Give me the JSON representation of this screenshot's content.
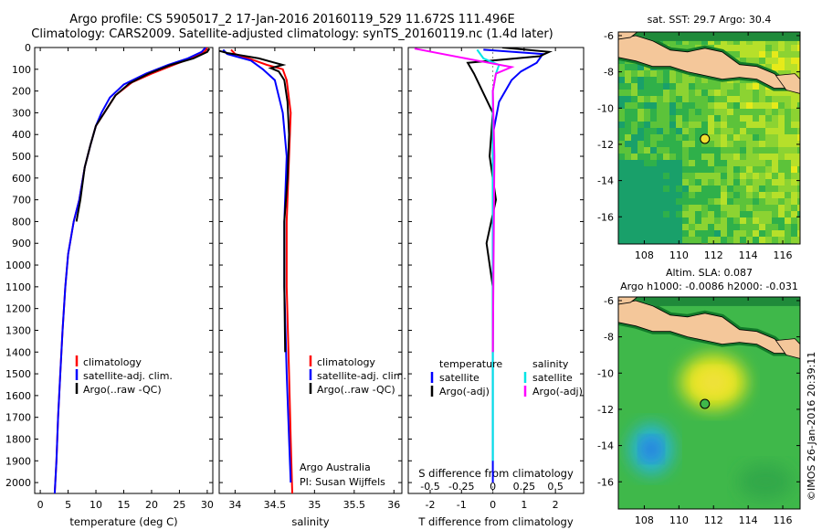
{
  "title_line1": "Argo profile: CS 5905017_2 17-Jan-2016 20160119_529 11.672S 111.496E",
  "title_line2": "Climatology: CARS2009. Satellite-adjusted climatology: synTS_20160119.nc (1.4d later)",
  "credit": "©IMOS 26-Jan-2016 20:39:11",
  "colors": {
    "climatology": "#ff0000",
    "satellite": "#0000ff",
    "argo": "#000000",
    "sal_sat": "#00e5e5",
    "sal_argo": "#ff00ff",
    "land": "#f4c79a"
  },
  "chart_data": [
    {
      "type": "line",
      "xlabel": "temperature (deg C)",
      "ylabel": "",
      "xlim": [
        -1,
        31
      ],
      "ylim": [
        2050,
        0
      ],
      "xticks": [
        0,
        5,
        10,
        15,
        20,
        25,
        30
      ],
      "yticks": [
        0,
        100,
        200,
        300,
        400,
        500,
        600,
        700,
        800,
        900,
        1000,
        1100,
        1200,
        1300,
        1400,
        1500,
        1600,
        1700,
        1800,
        1900,
        2000
      ],
      "legend": [
        "climatology",
        "satellite-adj. clim.",
        "Argo(..raw -QC)"
      ],
      "series": [
        {
          "name": "climatology",
          "color": "#ff0000",
          "x": [
            30,
            29.5,
            27,
            24,
            20,
            16.5,
            13.5,
            11.5,
            10,
            9,
            8,
            7,
            6,
            5,
            4.5,
            4,
            3.6,
            3.2,
            2.9,
            2.6
          ],
          "y": [
            0,
            20,
            50,
            80,
            120,
            160,
            220,
            300,
            360,
            450,
            550,
            700,
            800,
            950,
            1100,
            1300,
            1500,
            1700,
            1900,
            2050
          ]
        },
        {
          "name": "satellite-adj. clim.",
          "color": "#0000ff",
          "x": [
            29.7,
            29,
            26.5,
            23,
            19,
            15,
            12.5,
            11,
            10,
            9,
            8,
            7,
            6,
            5,
            4.5,
            4,
            3.6,
            3.2,
            2.9,
            2.6
          ],
          "y": [
            0,
            20,
            50,
            80,
            120,
            170,
            230,
            300,
            360,
            450,
            550,
            700,
            800,
            950,
            1100,
            1300,
            1500,
            1700,
            1900,
            2050
          ]
        },
        {
          "name": "Argo(..raw -QC)",
          "color": "#000000",
          "x": [
            30.4,
            30,
            27.5,
            23.5,
            19.5,
            16,
            13.5,
            11.5,
            10,
            9,
            8,
            7.2,
            6.5
          ],
          "y": [
            5,
            20,
            50,
            80,
            120,
            165,
            220,
            300,
            360,
            450,
            550,
            700,
            800
          ]
        }
      ]
    },
    {
      "type": "line",
      "xlabel": "salinity",
      "ylabel": "",
      "xlim": [
        33.8,
        36.1
      ],
      "ylim": [
        2050,
        0
      ],
      "xticks": [
        34,
        34.5,
        35,
        35.5,
        36
      ],
      "legend": [
        "climatology",
        "satellite-adj. clim.",
        "Argo(..raw -QC)"
      ],
      "annotation": [
        "Argo Australia",
        "PI: Susan Wijffels"
      ],
      "series": [
        {
          "name": "climatology",
          "color": "#ff0000",
          "x": [
            33.95,
            34.0,
            34.25,
            34.4,
            34.6,
            34.65,
            34.7,
            34.68,
            34.65,
            34.65,
            34.68,
            34.7,
            34.72
          ],
          "y": [
            10,
            30,
            60,
            80,
            100,
            150,
            300,
            500,
            800,
            1100,
            1500,
            1800,
            2050
          ]
        },
        {
          "name": "satellite-adj. clim.",
          "color": "#0000ff",
          "x": [
            33.85,
            33.9,
            34.2,
            34.35,
            34.5,
            34.6,
            34.65,
            34.62,
            34.62,
            34.65,
            34.68,
            34.7
          ],
          "y": [
            10,
            30,
            60,
            100,
            150,
            300,
            500,
            800,
            1100,
            1500,
            1800,
            2000
          ]
        },
        {
          "name": "Argo(..raw -QC)",
          "color": "#000000",
          "x": [
            33.7,
            33.9,
            34.3,
            34.5,
            34.6,
            34.45,
            34.55,
            34.62,
            34.66,
            34.68,
            34.66,
            34.62,
            34.62,
            34.63
          ],
          "y": [
            5,
            25,
            50,
            70,
            80,
            95,
            110,
            150,
            250,
            400,
            600,
            800,
            1100,
            1400
          ]
        }
      ]
    },
    {
      "type": "line",
      "xlabel": "T difference from climatology",
      "ylabel": "",
      "xlim": [
        -2.7,
        2.9
      ],
      "ylim": [
        2050,
        0
      ],
      "xticks": [
        -2,
        -1,
        0,
        1,
        2
      ],
      "top_axis_label": "S difference from climatology",
      "top_ticks": [
        -0.5,
        -0.25,
        0,
        0.25,
        0.5
      ],
      "legend_headers": [
        "temperature",
        "salinity"
      ],
      "legend": [
        "satellite",
        "Argo(-adj)",
        "satellite",
        "Argo(-adj)"
      ],
      "series": [
        {
          "name": "satellite",
          "color": "#0000ff",
          "x": [
            -0.3,
            1.6,
            1.4,
            0.9,
            0.6,
            0.2,
            0,
            0
          ],
          "y": [
            10,
            30,
            70,
            110,
            150,
            250,
            400,
            2000
          ]
        },
        {
          "name": "Argo(-adj)",
          "color": "#000000",
          "x": [
            0.3,
            1.8,
            1.5,
            -0.8,
            -0.6,
            0,
            -0.1,
            0.1,
            -0.2,
            0,
            0
          ],
          "y": [
            0,
            20,
            40,
            70,
            120,
            300,
            500,
            700,
            900,
            1100,
            1400
          ]
        },
        {
          "name": "satellite",
          "color": "#00e5e5",
          "x": [
            -0.5,
            -0.3,
            0.2,
            0.1,
            0,
            0,
            0
          ],
          "y": [
            10,
            50,
            80,
            120,
            200,
            500,
            1900
          ]
        },
        {
          "name": "Argo(-adj)",
          "color": "#ff00ff",
          "x": [
            -2.5,
            -0.5,
            0.6,
            0.1,
            0,
            0.05,
            0
          ],
          "y": [
            5,
            60,
            90,
            120,
            200,
            500,
            1400
          ]
        }
      ]
    },
    {
      "type": "heatmap",
      "title": "sat. SST: 29.7 Argo: 30.4",
      "xlim": [
        106.5,
        117
      ],
      "ylim": [
        -17.5,
        -5.8
      ],
      "xticks": [
        108,
        110,
        112,
        114,
        116
      ],
      "yticks": [
        -6,
        -8,
        -10,
        -12,
        -14,
        -16
      ],
      "point": [
        111.5,
        -11.7
      ]
    },
    {
      "type": "heatmap",
      "title": "Altim. SLA: 0.087",
      "subtitle": "Argo h1000: -0.0086 h2000: -0.031",
      "xlim": [
        106.5,
        117
      ],
      "ylim": [
        -17.5,
        -5.8
      ],
      "xticks": [
        108,
        110,
        112,
        114,
        116
      ],
      "yticks": [
        -6,
        -8,
        -10,
        -12,
        -14,
        -16
      ],
      "point": [
        111.5,
        -11.7
      ]
    }
  ]
}
